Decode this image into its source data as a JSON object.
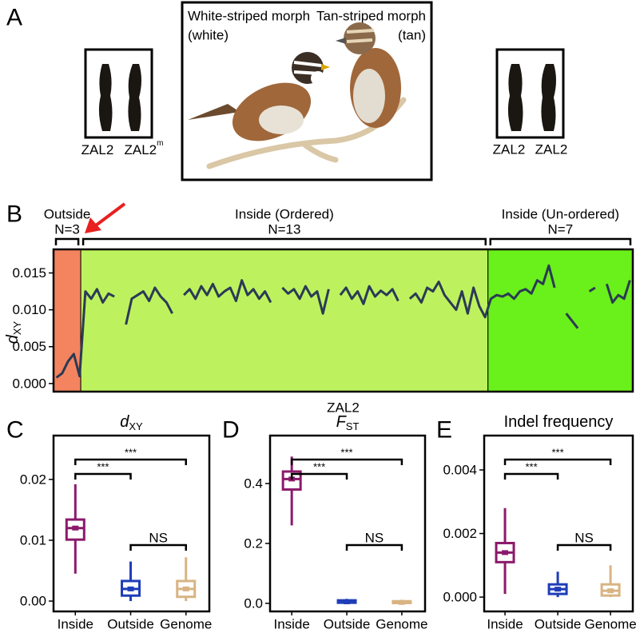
{
  "panel_a": {
    "label": "A",
    "morphs": [
      {
        "name": "White-striped morph",
        "short": "(white)"
      },
      {
        "name": "Tan-striped morph",
        "short": "(tan)"
      }
    ],
    "left_chromosomes": [
      "ZAL2",
      {
        "text": "ZAL2",
        "sup": "m"
      }
    ],
    "right_chromosomes": [
      "ZAL2",
      "ZAL2"
    ]
  },
  "chart_data": [
    {
      "panel": "B",
      "type": "line",
      "ylabel": "d",
      "ylabel_sub": "XY",
      "xlabel": "ZAL2",
      "color": "#2b3a55",
      "xlim": [
        0,
        100
      ],
      "ylim": [
        -0.0011,
        0.0182
      ],
      "yticks": [
        {
          "value": 0,
          "label": "0.000"
        },
        0.005,
        {
          "value": 0.01,
          "label": "0.010"
        },
        0.015
      ],
      "regions": [
        {
          "label": "Outside",
          "n_label": "N=3",
          "start": 0,
          "end": 4.7,
          "color": "#f4845f"
        },
        {
          "label": "Inside (Ordered)",
          "n_label": "N=13",
          "start": 4.7,
          "end": 75,
          "color": "#bdf25e"
        },
        {
          "label": "Inside (Un-ordered)",
          "n_label": "N=7",
          "start": 75,
          "end": 100,
          "color": "#6af01a"
        }
      ],
      "x": [
        0.5,
        1.5,
        2.5,
        3.5,
        4.5,
        5.5,
        6.5,
        7.5,
        8.5,
        9.5,
        10.5,
        11.5,
        12.5,
        13.5,
        14.5,
        15.5,
        16.5,
        17.5,
        18.5,
        19.5,
        20.5,
        21.5,
        22.5,
        23.5,
        24.5,
        25.5,
        26.5,
        27.5,
        28.5,
        29.5,
        30.5,
        31.5,
        32.5,
        33.5,
        34.5,
        35.5,
        36.5,
        37.5,
        38.5,
        39.5,
        40.5,
        41.5,
        42.5,
        43.5,
        44.5,
        45.5,
        46.5,
        47.5,
        48.5,
        49.5,
        50.5,
        51.5,
        52.5,
        53.5,
        54.5,
        55.5,
        56.5,
        57.5,
        58.5,
        59.5,
        60.5,
        61.5,
        62.5,
        63.5,
        64.5,
        65.5,
        66.5,
        67.5,
        68.5,
        69.5,
        70.5,
        71.5,
        72.5,
        73.5,
        74.5,
        75.5,
        76.5,
        77.5,
        78.5,
        79.5,
        80.5,
        81.5,
        82.5,
        83.5,
        84.5,
        85.5,
        86.5,
        87.5,
        88.5,
        89.5,
        90.5,
        91.5,
        92.5,
        93.5,
        94.5,
        95.5,
        96.5,
        97.5,
        98.5,
        99.5
      ],
      "values": [
        0.0008,
        0.0014,
        0.003,
        0.004,
        0.001,
        0.0125,
        0.0115,
        0.0128,
        0.011,
        0.0122,
        0.0118,
        null,
        0.008,
        0.0115,
        0.012,
        0.0125,
        0.0112,
        0.013,
        0.0118,
        0.011,
        0.0095,
        null,
        0.012,
        0.0128,
        0.0115,
        0.0132,
        0.012,
        0.0135,
        0.0118,
        0.0125,
        0.013,
        0.0112,
        0.014,
        0.012,
        0.0128,
        0.0115,
        0.0125,
        0.011,
        null,
        0.013,
        0.0122,
        0.0128,
        0.0115,
        0.0132,
        0.0118,
        0.0125,
        0.0095,
        0.0128,
        null,
        0.012,
        0.013,
        0.0115,
        0.0125,
        0.0108,
        0.0132,
        0.0118,
        0.0126,
        0.012,
        0.0128,
        0.0112,
        null,
        0.0115,
        0.0122,
        0.011,
        0.013,
        0.0125,
        0.0138,
        0.012,
        0.011,
        0.01,
        0.0125,
        0.0095,
        0.013,
        0.0105,
        0.009,
        0.0115,
        0.012,
        0.0118,
        0.0122,
        0.0115,
        0.0125,
        0.0128,
        0.0122,
        0.014,
        0.0135,
        0.016,
        0.013,
        null,
        0.0095,
        0.0085,
        0.0075,
        null,
        0.0125,
        0.013,
        null,
        0.0135,
        0.011,
        0.012,
        0.0115,
        0.014
      ]
    },
    {
      "panel": "C",
      "type": "box",
      "title": "d",
      "title_sub": "XY",
      "categories": [
        "Inside",
        "Outside",
        "Genome"
      ],
      "colors": [
        "#8b1a6b",
        "#1f3db8",
        "#d8b483"
      ],
      "boxes": [
        {
          "low": 0.0045,
          "q1": 0.0101,
          "median": 0.012,
          "q3": 0.0134,
          "high": 0.0192
        },
        {
          "low": 0,
          "q1": 0.0009,
          "median": 0.002,
          "q3": 0.0033,
          "high": 0.0065
        },
        {
          "low": 0,
          "q1": 0.0007,
          "median": 0.002,
          "q3": 0.0033,
          "high": 0.0072
        }
      ],
      "ylim": [
        -0.0017,
        0.0272
      ],
      "yticks": [
        {
          "value": 0,
          "label": "0.00"
        },
        0.01,
        0.02
      ],
      "comparisons": [
        {
          "pair": [
            "Inside",
            "Outside"
          ],
          "label": "***"
        },
        {
          "pair": [
            "Inside",
            "Genome"
          ],
          "label": "***"
        },
        {
          "pair": [
            "Outside",
            "Genome"
          ],
          "label": "NS"
        }
      ]
    },
    {
      "panel": "D",
      "type": "box",
      "title": "F",
      "title_sub": "ST",
      "categories": [
        "Inside",
        "Outside",
        "Genome"
      ],
      "colors": [
        "#8b1a6b",
        "#1f3db8",
        "#d8b483"
      ],
      "boxes": [
        {
          "low": 0.26,
          "q1": 0.38,
          "median": 0.415,
          "q3": 0.44,
          "high": 0.49
        },
        {
          "low": 0,
          "q1": 0.002,
          "median": 0.005,
          "q3": 0.01,
          "high": 0.015
        },
        {
          "low": 0,
          "q1": 0.001,
          "median": 0.003,
          "q3": 0.007,
          "high": 0.012
        }
      ],
      "ylim": [
        -0.027,
        0.56
      ],
      "yticks": [
        {
          "value": 0,
          "label": "0.0"
        },
        0.2,
        0.4
      ],
      "comparisons": [
        {
          "pair": [
            "Inside",
            "Outside"
          ],
          "label": "***"
        },
        {
          "pair": [
            "Inside",
            "Genome"
          ],
          "label": "***"
        },
        {
          "pair": [
            "Outside",
            "Genome"
          ],
          "label": "NS"
        }
      ]
    },
    {
      "panel": "E",
      "type": "box",
      "title": "Indel frequency",
      "categories": [
        "Inside",
        "Outside",
        "Genome"
      ],
      "colors": [
        "#8b1a6b",
        "#1f3db8",
        "#d8b483"
      ],
      "boxes": [
        {
          "low": 0.0001,
          "q1": 0.0011,
          "median": 0.0014,
          "q3": 0.0017,
          "high": 0.0028
        },
        {
          "low": 0,
          "q1": 0.0001,
          "median": 0.00025,
          "q3": 0.0004,
          "high": 0.0008
        },
        {
          "low": 0,
          "q1": 5e-05,
          "median": 0.0002,
          "q3": 0.0004,
          "high": 0.001
        }
      ],
      "ylim": [
        -0.00045,
        0.00508
      ],
      "yticks": [
        {
          "value": 0,
          "label": "0.000"
        },
        0.002,
        0.004
      ],
      "comparisons": [
        {
          "pair": [
            "Inside",
            "Outside"
          ],
          "label": "***"
        },
        {
          "pair": [
            "Inside",
            "Genome"
          ],
          "label": "***"
        },
        {
          "pair": [
            "Outside",
            "Genome"
          ],
          "label": "NS"
        }
      ]
    }
  ]
}
